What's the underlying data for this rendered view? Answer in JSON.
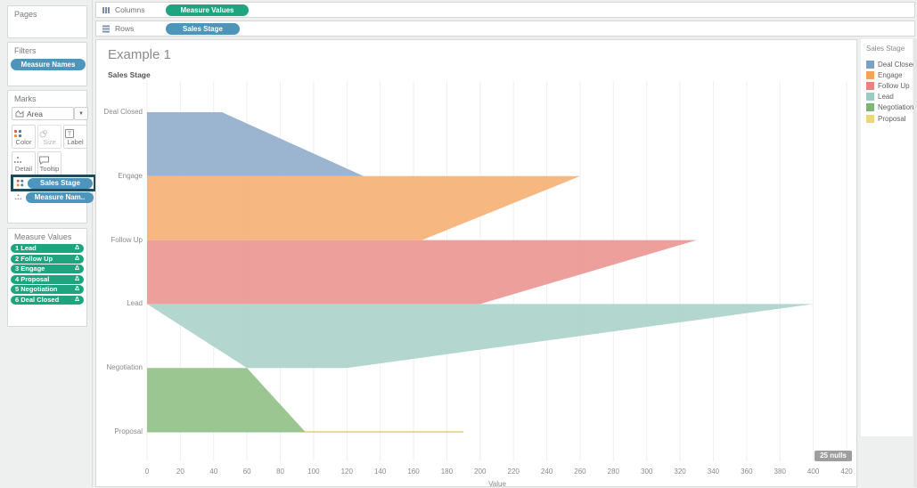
{
  "shelves": {
    "columns": {
      "label": "Columns",
      "pill": "Measure Values"
    },
    "rows": {
      "label": "Rows",
      "pill": "Sales Stage"
    }
  },
  "sidebar": {
    "pages_label": "Pages",
    "filters_label": "Filters",
    "filters_pill": "Measure Names",
    "marks_label": "Marks",
    "mark_type": "Area",
    "buttons": {
      "color": "Color",
      "size": "Size",
      "label": "Label",
      "detail": "Detail",
      "tooltip": "Tooltip"
    },
    "marks_pills": {
      "first": "Sales Stage",
      "second": "Measure Nam.."
    },
    "measure_values_label": "Measure Values",
    "measure_pills": [
      "1 Lead",
      "2 Follow Up",
      "3 Engage",
      "4 Proposal",
      "5 Negotiation",
      "6 Deal Closed"
    ],
    "delta_icon": "Δ"
  },
  "chart_data": {
    "type": "area",
    "title": "Example 1",
    "row_axis_title": "Sales Stage",
    "xlabel": "Value",
    "xlim": [
      0,
      420
    ],
    "x_ticks": [
      0,
      20,
      40,
      60,
      80,
      100,
      120,
      140,
      160,
      180,
      200,
      220,
      240,
      260,
      280,
      300,
      320,
      340,
      360,
      380,
      400,
      420
    ],
    "grid": true,
    "categories": [
      "Deal Closed",
      "Engage",
      "Follow Up",
      "Lead",
      "Negotiation",
      "Proposal"
    ],
    "series": [
      {
        "name": "Deal Closed",
        "fill": "#93AECB",
        "swatch": "#7FA0C5",
        "polygon": [
          [
            0,
            0
          ],
          [
            45,
            0
          ],
          [
            130,
            1
          ],
          [
            0,
            1
          ]
        ]
      },
      {
        "name": "Engage",
        "fill": "#F5B175",
        "swatch": "#F2A45C",
        "polygon": [
          [
            0,
            1
          ],
          [
            260,
            1
          ],
          [
            165,
            2
          ],
          [
            0,
            2
          ]
        ]
      },
      {
        "name": "Follow Up",
        "fill": "#EB9794",
        "swatch": "#E8837E",
        "polygon": [
          [
            0,
            2
          ],
          [
            330,
            2
          ],
          [
            200,
            3
          ],
          [
            0,
            3
          ]
        ]
      },
      {
        "name": "Lead",
        "fill": "#ACD2CB",
        "swatch": "#9ECCC5",
        "polygon": [
          [
            0,
            3
          ],
          [
            400,
            3
          ],
          [
            120,
            4
          ],
          [
            60,
            4
          ]
        ]
      },
      {
        "name": "Negotiation",
        "fill": "#94C188",
        "swatch": "#7FB575",
        "polygon": [
          [
            0,
            4
          ],
          [
            60,
            4
          ],
          [
            95,
            5
          ],
          [
            0,
            5
          ]
        ]
      },
      {
        "name": "Proposal",
        "fill": "#E2C45C",
        "swatch": "#EDD77E",
        "polygon": [
          [
            0,
            5
          ],
          [
            190,
            5
          ]
        ]
      }
    ],
    "legend_title": "Sales Stage",
    "legend_position": "right",
    "nulls_badge": "25 nulls"
  },
  "colors": {
    "pill_blue": "#4E95BC",
    "pill_green": "#1EA47E",
    "selection_highlight": "#1F4A5C"
  }
}
